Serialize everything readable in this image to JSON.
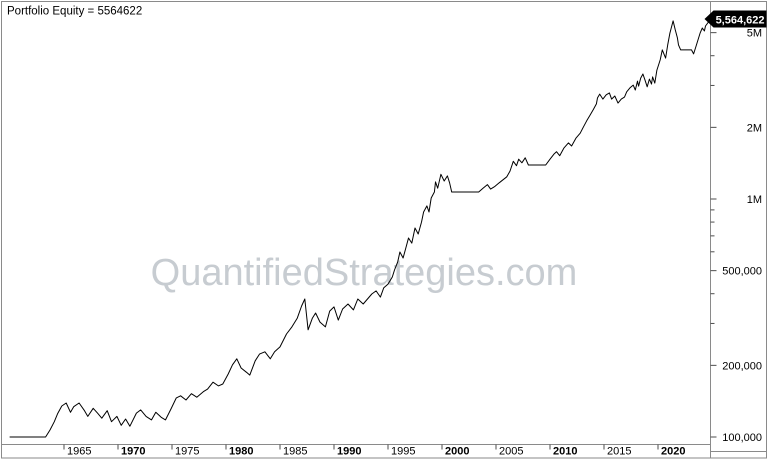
{
  "page": {
    "background": "#ffffff"
  },
  "title": {
    "text": "Portfolio Equity = 5564622"
  },
  "watermark": {
    "text": "QuantifiedStrategies.com",
    "color": "#c7ccd1"
  },
  "value_flag": {
    "label": "5,564,622",
    "bg": "#000000",
    "fg": "#ffffff"
  },
  "colors": {
    "line": "#000000",
    "frame": "#8a8a8a",
    "tick": "#4d4d4d",
    "text": "#000000"
  },
  "chart_data": {
    "type": "line",
    "title": "Portfolio Equity = 5564622",
    "xlabel": "",
    "ylabel": "",
    "y_scale": "log",
    "grid": false,
    "legend": "none",
    "axis_side": "right",
    "xlim": [
      1959.8,
      2025.0
    ],
    "ylim": [
      93000,
      6800000
    ],
    "last_value": 5564622,
    "x_axis": {
      "ticks": [
        {
          "year": 1965,
          "label": "1965",
          "bold": false
        },
        {
          "year": 1970,
          "label": "1970",
          "bold": true
        },
        {
          "year": 1975,
          "label": "1975",
          "bold": false
        },
        {
          "year": 1980,
          "label": "1980",
          "bold": true
        },
        {
          "year": 1985,
          "label": "1985",
          "bold": false
        },
        {
          "year": 1990,
          "label": "1990",
          "bold": true
        },
        {
          "year": 1995,
          "label": "1995",
          "bold": false
        },
        {
          "year": 2000,
          "label": "2000",
          "bold": true
        },
        {
          "year": 2005,
          "label": "2005",
          "bold": false
        },
        {
          "year": 2010,
          "label": "2010",
          "bold": true
        },
        {
          "year": 2015,
          "label": "2015",
          "bold": false
        },
        {
          "year": 2020,
          "label": "2020",
          "bold": true
        }
      ]
    },
    "y_axis": {
      "major": [
        {
          "value": 5000000,
          "label": "5M"
        },
        {
          "value": 2000000,
          "label": "2M"
        },
        {
          "value": 1000000,
          "label": "1M"
        },
        {
          "value": 500000,
          "label": "500,000"
        },
        {
          "value": 200000,
          "label": "200,000"
        },
        {
          "value": 100000,
          "label": "100,000"
        }
      ],
      "minor": [
        4000000,
        3000000,
        900000,
        800000,
        700000,
        600000,
        400000,
        300000
      ]
    },
    "series": [
      {
        "name": "Portfolio Equity",
        "color": "#000000",
        "points": [
          [
            1960.0,
            100000
          ],
          [
            1963.3,
            100000
          ],
          [
            1963.7,
            107000
          ],
          [
            1964.1,
            116000
          ],
          [
            1964.4,
            125000
          ],
          [
            1964.8,
            135000
          ],
          [
            1965.2,
            139000
          ],
          [
            1965.6,
            127000
          ],
          [
            1965.9,
            134000
          ],
          [
            1966.4,
            139000
          ],
          [
            1966.9,
            129000
          ],
          [
            1967.2,
            122000
          ],
          [
            1967.7,
            132000
          ],
          [
            1968.1,
            126000
          ],
          [
            1968.5,
            120000
          ],
          [
            1969.0,
            129000
          ],
          [
            1969.4,
            116000
          ],
          [
            1969.9,
            122000
          ],
          [
            1970.3,
            112000
          ],
          [
            1970.7,
            119000
          ],
          [
            1971.1,
            111000
          ],
          [
            1971.7,
            126000
          ],
          [
            1972.1,
            130000
          ],
          [
            1972.6,
            122000
          ],
          [
            1973.1,
            118000
          ],
          [
            1973.5,
            127000
          ],
          [
            1974.0,
            121000
          ],
          [
            1974.4,
            118000
          ],
          [
            1974.9,
            131000
          ],
          [
            1975.4,
            146000
          ],
          [
            1975.8,
            149000
          ],
          [
            1976.3,
            143000
          ],
          [
            1976.8,
            152000
          ],
          [
            1977.3,
            147000
          ],
          [
            1977.9,
            155000
          ],
          [
            1978.3,
            159000
          ],
          [
            1978.8,
            170000
          ],
          [
            1979.3,
            164000
          ],
          [
            1979.7,
            167000
          ],
          [
            1980.2,
            184000
          ],
          [
            1980.6,
            201000
          ],
          [
            1981.0,
            213000
          ],
          [
            1981.4,
            195000
          ],
          [
            1981.9,
            187000
          ],
          [
            1982.2,
            182000
          ],
          [
            1982.7,
            209000
          ],
          [
            1983.1,
            223000
          ],
          [
            1983.6,
            228000
          ],
          [
            1984.1,
            213000
          ],
          [
            1984.5,
            228000
          ],
          [
            1985.0,
            239000
          ],
          [
            1985.6,
            271000
          ],
          [
            1986.1,
            290000
          ],
          [
            1986.6,
            316000
          ],
          [
            1987.0,
            355000
          ],
          [
            1987.3,
            380000
          ],
          [
            1987.6,
            282000
          ],
          [
            1988.0,
            316000
          ],
          [
            1988.3,
            332000
          ],
          [
            1988.7,
            304000
          ],
          [
            1989.2,
            290000
          ],
          [
            1989.6,
            338000
          ],
          [
            1990.0,
            352000
          ],
          [
            1990.4,
            310000
          ],
          [
            1990.8,
            345000
          ],
          [
            1991.3,
            362000
          ],
          [
            1991.8,
            342000
          ],
          [
            1992.2,
            380000
          ],
          [
            1992.7,
            362000
          ],
          [
            1993.1,
            380000
          ],
          [
            1993.5,
            399000
          ],
          [
            1993.9,
            411000
          ],
          [
            1994.3,
            387000
          ],
          [
            1994.6,
            423000
          ],
          [
            1995.0,
            439000
          ],
          [
            1995.4,
            470000
          ],
          [
            1995.6,
            503000
          ],
          [
            1995.9,
            544000
          ],
          [
            1996.1,
            599000
          ],
          [
            1996.4,
            565000
          ],
          [
            1996.7,
            635000
          ],
          [
            1996.9,
            686000
          ],
          [
            1997.2,
            653000
          ],
          [
            1997.5,
            755000
          ],
          [
            1997.8,
            713000
          ],
          [
            1998.1,
            800000
          ],
          [
            1998.3,
            882000
          ],
          [
            1998.6,
            935000
          ],
          [
            1998.8,
            882000
          ],
          [
            1999.0,
            1010000
          ],
          [
            1999.3,
            1070000
          ],
          [
            1999.4,
            1180000
          ],
          [
            1999.6,
            1110000
          ],
          [
            1999.9,
            1270000
          ],
          [
            2000.2,
            1190000
          ],
          [
            2000.5,
            1250000
          ],
          [
            2000.7,
            1170000
          ],
          [
            2000.9,
            1070000
          ],
          [
            2003.4,
            1070000
          ],
          [
            2003.8,
            1110000
          ],
          [
            2004.2,
            1150000
          ],
          [
            2004.5,
            1100000
          ],
          [
            2004.9,
            1130000
          ],
          [
            2005.3,
            1170000
          ],
          [
            2005.6,
            1200000
          ],
          [
            2006.0,
            1240000
          ],
          [
            2006.3,
            1310000
          ],
          [
            2006.6,
            1440000
          ],
          [
            2006.9,
            1380000
          ],
          [
            2007.1,
            1470000
          ],
          [
            2007.4,
            1420000
          ],
          [
            2007.7,
            1490000
          ],
          [
            2008.0,
            1390000
          ],
          [
            2009.6,
            1390000
          ],
          [
            2010.0,
            1470000
          ],
          [
            2010.4,
            1550000
          ],
          [
            2010.6,
            1580000
          ],
          [
            2010.9,
            1520000
          ],
          [
            2011.3,
            1640000
          ],
          [
            2011.7,
            1720000
          ],
          [
            2012.0,
            1670000
          ],
          [
            2012.4,
            1800000
          ],
          [
            2012.8,
            1890000
          ],
          [
            2013.1,
            2010000
          ],
          [
            2013.4,
            2130000
          ],
          [
            2013.7,
            2250000
          ],
          [
            2014.0,
            2370000
          ],
          [
            2014.3,
            2510000
          ],
          [
            2014.4,
            2660000
          ],
          [
            2014.6,
            2760000
          ],
          [
            2014.9,
            2630000
          ],
          [
            2015.2,
            2740000
          ],
          [
            2015.5,
            2790000
          ],
          [
            2015.7,
            2630000
          ],
          [
            2016.0,
            2710000
          ],
          [
            2016.3,
            2530000
          ],
          [
            2016.6,
            2630000
          ],
          [
            2016.9,
            2680000
          ],
          [
            2017.1,
            2820000
          ],
          [
            2017.4,
            2930000
          ],
          [
            2017.7,
            3010000
          ],
          [
            2017.9,
            2870000
          ],
          [
            2018.1,
            3130000
          ],
          [
            2018.2,
            2980000
          ],
          [
            2018.4,
            3220000
          ],
          [
            2018.6,
            3350000
          ],
          [
            2018.8,
            3160000
          ],
          [
            2019.0,
            2960000
          ],
          [
            2019.2,
            3190000
          ],
          [
            2019.4,
            3040000
          ],
          [
            2019.5,
            3260000
          ],
          [
            2019.7,
            3070000
          ],
          [
            2019.9,
            3480000
          ],
          [
            2020.2,
            3840000
          ],
          [
            2020.4,
            4230000
          ],
          [
            2020.7,
            3910000
          ],
          [
            2020.9,
            4440000
          ],
          [
            2021.1,
            4980000
          ],
          [
            2021.4,
            5600000
          ],
          [
            2021.6,
            5130000
          ],
          [
            2021.8,
            4750000
          ],
          [
            2021.9,
            4440000
          ],
          [
            2022.1,
            4230000
          ],
          [
            2023.1,
            4230000
          ],
          [
            2023.3,
            4070000
          ],
          [
            2023.5,
            4350000
          ],
          [
            2023.7,
            4660000
          ],
          [
            2023.9,
            4980000
          ],
          [
            2024.1,
            5230000
          ],
          [
            2024.3,
            5080000
          ],
          [
            2024.4,
            5330000
          ],
          [
            2024.7,
            5564622
          ]
        ]
      }
    ]
  }
}
